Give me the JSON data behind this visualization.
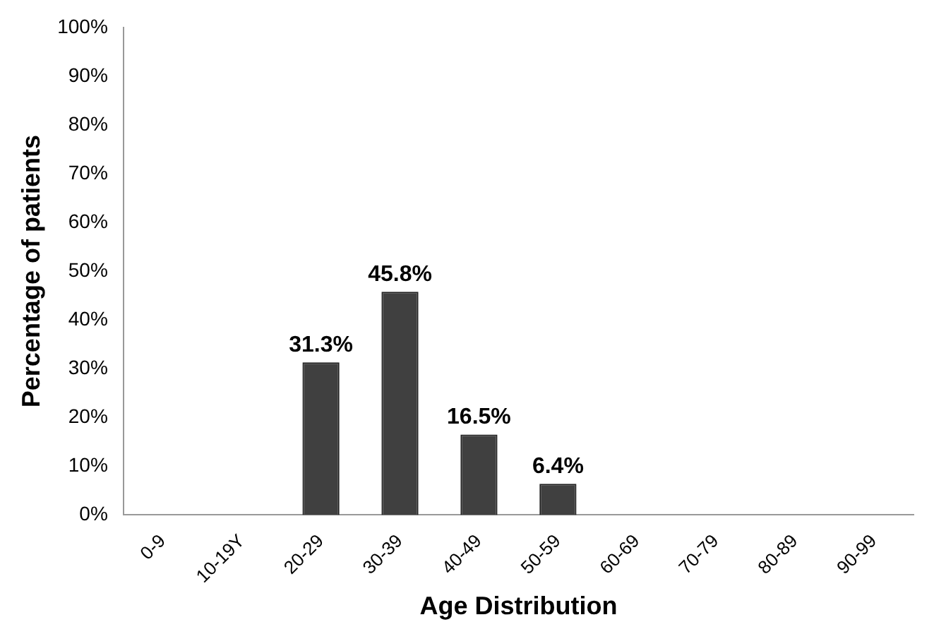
{
  "chart_data": {
    "type": "bar",
    "xlabel": "Age Distribution",
    "ylabel": "Percentage of patients",
    "categories": [
      "0-9",
      "10-19Y",
      "20-29",
      "30-39",
      "40-49",
      "50-59",
      "60-69",
      "70-79",
      "80-89",
      "90-99"
    ],
    "values": [
      0,
      0,
      31.3,
      45.8,
      16.5,
      6.4,
      0,
      0,
      0,
      0
    ],
    "value_labels": [
      null,
      null,
      "31.3%",
      "45.8%",
      "16.5%",
      "6.4%",
      null,
      null,
      null,
      null
    ],
    "color": "#404040",
    "ylim": [
      0,
      100
    ],
    "yticks": [
      {
        "value": 0,
        "label": "0%"
      },
      {
        "value": 10,
        "label": "10%"
      },
      {
        "value": 20,
        "label": "20%"
      },
      {
        "value": 30,
        "label": "30%"
      },
      {
        "value": 40,
        "label": "40%"
      },
      {
        "value": 50,
        "label": "50%"
      },
      {
        "value": 60,
        "label": "60%"
      },
      {
        "value": 70,
        "label": "70%"
      },
      {
        "value": 80,
        "label": "80%"
      },
      {
        "value": 90,
        "label": "90%"
      },
      {
        "value": 100,
        "label": "100%"
      }
    ],
    "grid": false,
    "legend": false
  }
}
